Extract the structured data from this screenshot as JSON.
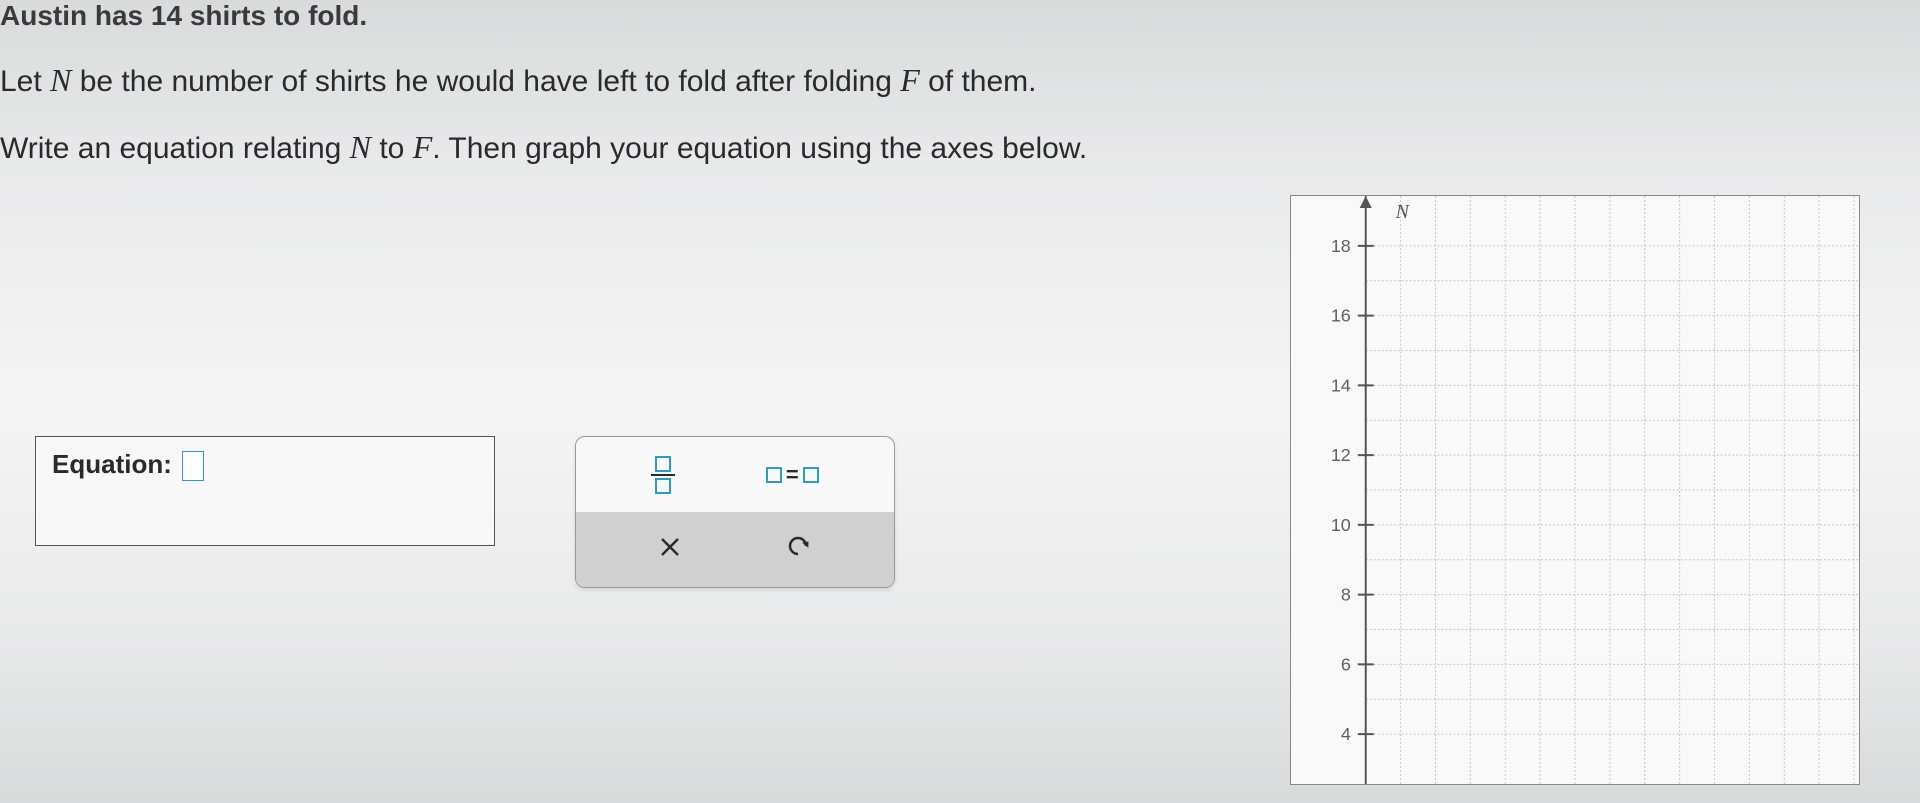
{
  "problem": {
    "line1": "Austin has 14 shirts to fold.",
    "line2_parts": {
      "prefix": "Let ",
      "var1": "N",
      "mid1": " be the number of shirts he would have left to fold after folding ",
      "var2": "F",
      "suffix": " of them."
    },
    "line3_parts": {
      "prefix": "Write an equation relating ",
      "var1": "N",
      "mid1": " to ",
      "var2": "F",
      "suffix": ". Then graph your equation using the axes below."
    }
  },
  "equation_input": {
    "label": "Equation:",
    "value": ""
  },
  "tools": {
    "equals_symbol": "=",
    "clear_symbol": "×",
    "undo_symbol": "↶"
  },
  "graph": {
    "type": "scatter",
    "y_axis_label": "N",
    "y_ticks": [
      4,
      6,
      8,
      10,
      12,
      14,
      16,
      18
    ],
    "y_tick_labels": [
      "4",
      "6",
      "8",
      "10",
      "12",
      "14",
      "16",
      "18"
    ],
    "background_color": "#f9f9f9",
    "grid_color": "#c8c8c8",
    "axis_color": "#555555",
    "label_color": "#606060",
    "label_fontsize": 18,
    "axis_x_position": 75,
    "y_spacing": 70,
    "grid_x_spacing": 35
  },
  "colors": {
    "accent": "#2b9bc9",
    "text": "#2a2a2a",
    "panel_bg": "#f8f8f8",
    "tool_bg": "#d0d0d0"
  }
}
